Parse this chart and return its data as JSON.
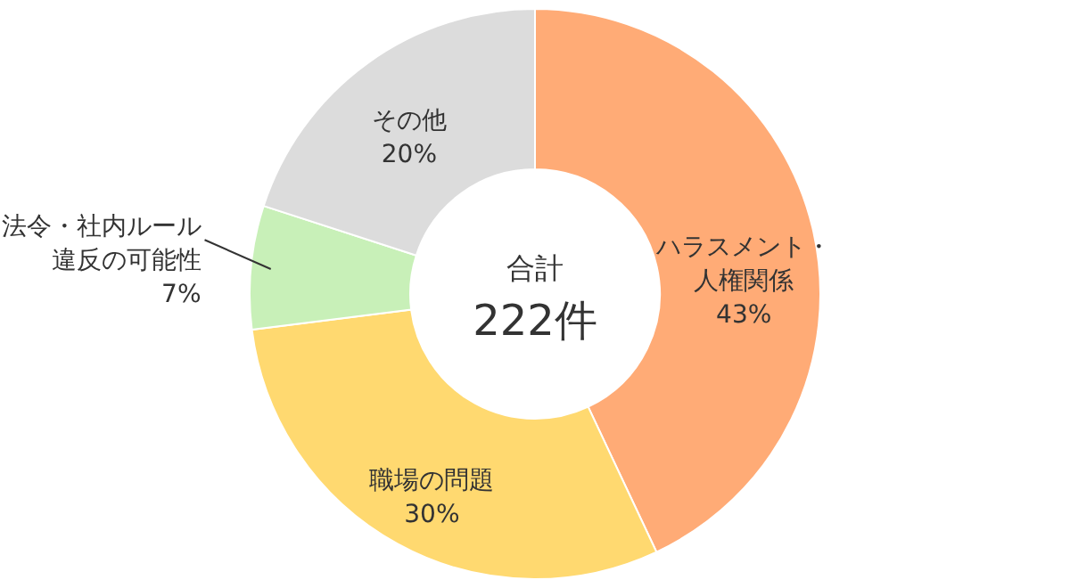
{
  "chart_data": {
    "type": "donut",
    "categories": [
      "ハラスメント・人権関係",
      "職場の問題",
      "法令・社内ルール違反の可能性",
      "その他"
    ],
    "values": [
      43,
      30,
      7,
      20
    ],
    "value_labels": [
      "43%",
      "30%",
      "7%",
      "20%"
    ],
    "colors": [
      "#ffab76",
      "#ffd970",
      "#c8f0b8",
      "#dcdcdc"
    ],
    "annotations": [
      "合計",
      "222件"
    ]
  }
}
